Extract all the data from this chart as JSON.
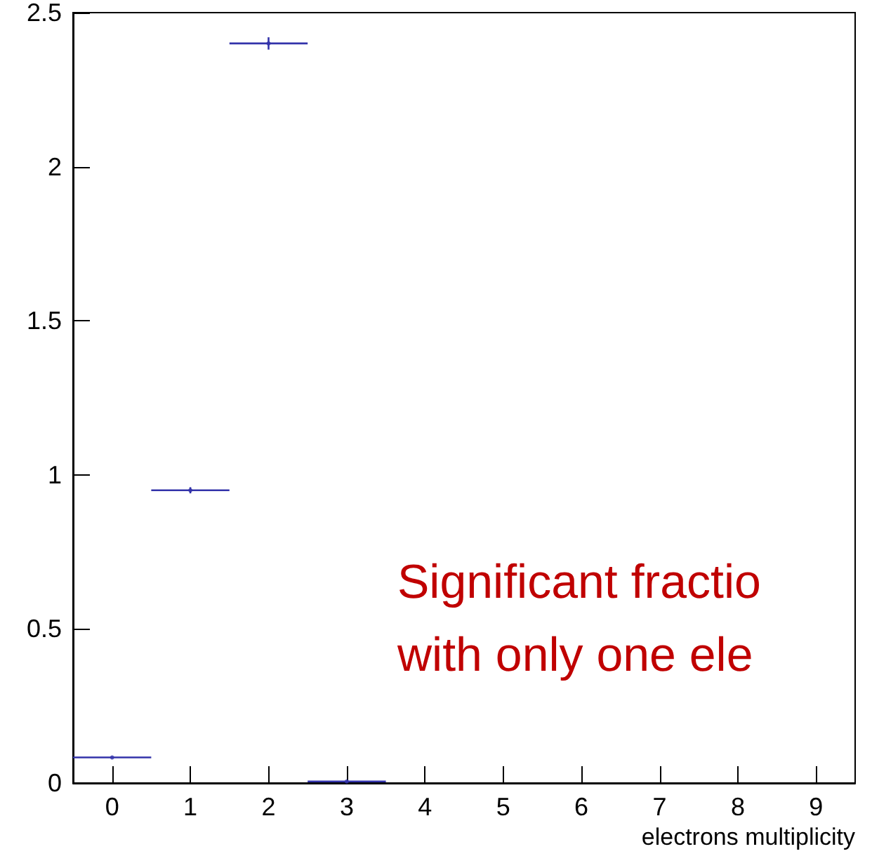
{
  "chart_data": {
    "type": "scatter",
    "xlabel": "electrons multiplicity",
    "x": [
      0,
      1,
      2,
      3
    ],
    "values": [
      0.083,
      0.95,
      2.4,
      0.005
    ],
    "xerrors": [
      0.5,
      0.5,
      0.5,
      0.5
    ],
    "errors": [
      null,
      0.01,
      0.02,
      null
    ],
    "marker": "circle",
    "color": "#3333aa",
    "xlim": [
      -0.5,
      9.5
    ],
    "xticks": [
      0,
      1,
      2,
      3,
      4,
      5,
      6,
      7,
      8,
      9
    ],
    "ylim": [
      0,
      2.5
    ],
    "yticks": [
      0,
      0.5,
      1,
      1.5,
      2,
      2.5
    ],
    "annotations": [
      "Significant fractio",
      "with only one ele"
    ]
  }
}
